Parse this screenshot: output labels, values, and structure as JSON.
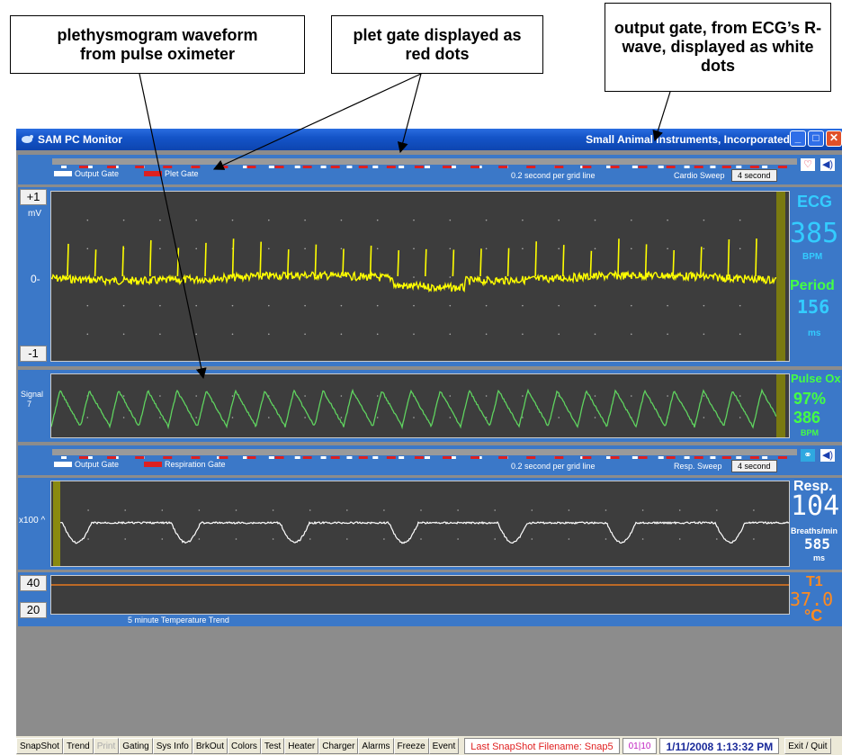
{
  "callouts": {
    "pleth": "plethysmogram waveform from pulse oximeter",
    "plet_gate": "plet gate displayed as red dots",
    "output_gate": "output gate, from ECG’s R-wave, displayed as white dots"
  },
  "window": {
    "title": "SAM PC Monitor",
    "company": "Small Animal Instruments, Incorporated"
  },
  "cardio_bar": {
    "output_gate_label": "Output Gate",
    "plet_gate_label": "Plet Gate",
    "grid_text": "0.2 second per grid line",
    "sweep_label": "Cardio Sweep",
    "sweep_value": "4 second"
  },
  "ecg": {
    "scale_top": "+1",
    "unit": "mV",
    "zero": "0-",
    "scale_bottom": "-1",
    "title": "ECG",
    "bpm_value": "385",
    "bpm_unit": "BPM",
    "period_label": "Period",
    "period_value": "156",
    "period_unit": "ms"
  },
  "pulse_ox": {
    "signal_label": "Signal",
    "signal_value": "7",
    "title": "Pulse Ox",
    "spo2": "97%",
    "bpm_value": "386",
    "bpm_unit": "BPM"
  },
  "resp_bar": {
    "output_gate_label": "Output Gate",
    "resp_gate_label": "Respiration Gate",
    "grid_text": "0.2 second per grid line",
    "sweep_label": "Resp. Sweep",
    "sweep_value": "4 second"
  },
  "resp": {
    "scale": "x100 ^",
    "title": "Resp.",
    "rate_value": "104",
    "rate_unit": "Breaths/min",
    "ms_value": "585",
    "ms_unit": "ms"
  },
  "temp": {
    "scale_top": "40",
    "scale_bottom": "20",
    "trend_label": "5 minute Temperature Trend",
    "title": "T1",
    "value": "37.0",
    "unit": "°C"
  },
  "taskbar": {
    "buttons": [
      "SnapShot",
      "Trend",
      "Print",
      "Gating",
      "Sys Info",
      "BrkOut",
      "Colors",
      "Test",
      "Heater",
      "Charger",
      "Alarms",
      "Freeze",
      "Event"
    ],
    "snapshot_status": "Last SnapShot Filename: Snap5",
    "page_indicator": "01|10",
    "datetime": "1/11/2008 1:13:32 PM",
    "exit": "Exit / Quit"
  },
  "colors": {
    "ecg_trace": "#ffff00",
    "pleth_trace": "#5fd35f",
    "resp_trace": "#ffffff",
    "temp_line": "#e87a1e",
    "readout_cyan": "#33ccff",
    "readout_green": "#44ff44",
    "readout_orange": "#ff8a1e",
    "plet_gate": "#dd2020",
    "output_gate": "#ffffff"
  },
  "icons": [
    "heart-icon",
    "speaker-icon",
    "lungs-icon"
  ]
}
